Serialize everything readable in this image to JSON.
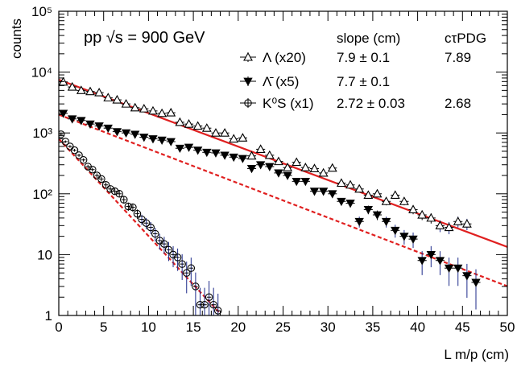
{
  "chart_data": {
    "type": "scatter",
    "xlabel": "L m/p (cm)",
    "ylabel": "counts",
    "xlim": [
      0,
      50
    ],
    "ylim": [
      1,
      100000
    ],
    "yscale": "log",
    "x_ticks": [
      "0",
      "5",
      "10",
      "15",
      "20",
      "25",
      "30",
      "35",
      "40",
      "45",
      "50"
    ],
    "y_ticks": [
      "1",
      "10",
      "10²",
      "10³",
      "10⁴",
      "10⁵"
    ],
    "grid": false,
    "annotation": "pp √s = 900 GeV",
    "table_headers": {
      "slope": "slope (cm)",
      "ctau": "cτPDG"
    },
    "legend_position": "top-right",
    "series": [
      {
        "name": "Λ (x20)",
        "marker": "open-triangle-up",
        "slope_text": "7.9 ± 0.1",
        "ctau_text": "7.89",
        "fit": {
          "slope_cm": 7.9,
          "intercept_counts": 7500,
          "x_range": [
            0,
            50
          ],
          "style": "solid"
        },
        "x": [
          0.5,
          1.5,
          2.5,
          3.5,
          4.5,
          5.5,
          6.5,
          7.5,
          8.5,
          9.5,
          10.5,
          11.5,
          12.5,
          13.5,
          14.5,
          15.5,
          16.5,
          17.5,
          18.5,
          19.5,
          20.5,
          21.5,
          22.5,
          23.5,
          24.5,
          25.5,
          26.5,
          27.5,
          28.5,
          29.5,
          30.5,
          31.5,
          32.5,
          33.5,
          34.5,
          35.5,
          36.5,
          37.5,
          38.5,
          39.5,
          40.5,
          41.5,
          42.5,
          43.5,
          44.5,
          45.5
        ],
        "y": [
          6900,
          5700,
          5000,
          4800,
          4600,
          3800,
          3500,
          3000,
          2600,
          2500,
          2300,
          2100,
          2150,
          1500,
          1400,
          1300,
          1200,
          1000,
          1000,
          800,
          830,
          420,
          540,
          430,
          340,
          270,
          330,
          270,
          260,
          220,
          265,
          150,
          140,
          120,
          95,
          100,
          75,
          95,
          75,
          55,
          45,
          40,
          30,
          28,
          35,
          32
        ]
      },
      {
        "name": "Λ̄ (x5)",
        "marker": "filled-triangle-down",
        "slope_text": "7.7 ± 0.1",
        "ctau_text": "",
        "fit": {
          "slope_cm": 7.7,
          "intercept_counts": 2000,
          "x_range": [
            0,
            50
          ],
          "style": "dashed"
        },
        "x": [
          0.5,
          1.5,
          2.5,
          3.5,
          4.5,
          5.5,
          6.5,
          7.5,
          8.5,
          9.5,
          10.5,
          11.5,
          12.5,
          13.5,
          14.5,
          15.5,
          16.5,
          17.5,
          18.5,
          19.5,
          20.5,
          21.5,
          22.5,
          23.5,
          24.5,
          25.5,
          26.5,
          27.5,
          28.5,
          29.5,
          30.5,
          31.5,
          32.5,
          33.5,
          34.5,
          35.5,
          36.5,
          37.5,
          38.5,
          39.5,
          40.5,
          41.5,
          42.5,
          43.5,
          44.5,
          45.5,
          46.5
        ],
        "y": [
          2100,
          1700,
          1600,
          1400,
          1300,
          1200,
          1050,
          1000,
          950,
          850,
          800,
          760,
          720,
          560,
          580,
          520,
          480,
          470,
          430,
          400,
          380,
          260,
          300,
          280,
          220,
          200,
          160,
          160,
          110,
          110,
          100,
          75,
          70,
          35,
          55,
          45,
          35,
          25,
          20,
          18,
          8,
          10,
          8,
          6,
          6,
          4.5,
          3.5
        ]
      },
      {
        "name": "K⁰S (x1)",
        "marker": "open-circle",
        "slope_text": "2.72 ± 0.03",
        "ctau_text": "2.68",
        "fit": {
          "slope_cm": 2.72,
          "intercept_counts": 800,
          "x_range": [
            0,
            18
          ],
          "style": "dashed"
        },
        "x": [
          0.25,
          0.75,
          1.25,
          1.75,
          2.25,
          2.75,
          3.25,
          3.75,
          4.25,
          4.75,
          5.25,
          5.75,
          6.25,
          6.75,
          7.25,
          7.75,
          8.25,
          8.75,
          9.25,
          9.75,
          10.25,
          10.75,
          11.25,
          11.75,
          12.25,
          12.75,
          13.25,
          13.75,
          14.25,
          14.75,
          15.25,
          15.75,
          16.25,
          16.75,
          17.25,
          17.75
        ],
        "y": [
          950,
          720,
          600,
          520,
          430,
          360,
          280,
          250,
          200,
          175,
          140,
          120,
          110,
          100,
          80,
          62,
          60,
          47,
          38,
          33,
          28,
          22,
          17,
          15,
          12,
          10,
          9,
          7,
          5,
          6,
          3,
          1.5,
          1.5,
          2,
          1.5,
          1.2
        ]
      }
    ]
  }
}
